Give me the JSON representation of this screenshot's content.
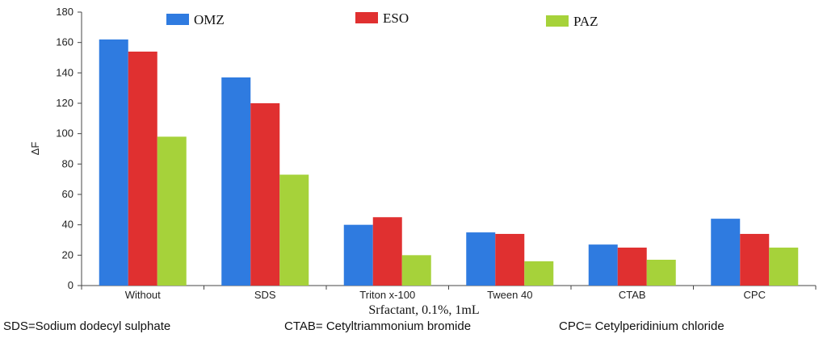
{
  "chart_data": {
    "type": "bar",
    "categories": [
      "Without",
      "SDS",
      "Triton x-100",
      "Tween 40",
      "CTAB",
      "CPC"
    ],
    "series": [
      {
        "name": "OMZ",
        "color": "#2f7be0",
        "values": [
          162,
          137,
          40,
          35,
          27,
          44
        ]
      },
      {
        "name": "ESO",
        "color": "#e03030",
        "values": [
          154,
          120,
          45,
          34,
          25,
          34
        ]
      },
      {
        "name": "PAZ",
        "color": "#a6d23a",
        "values": [
          98,
          73,
          20,
          16,
          17,
          25
        ]
      }
    ],
    "xlabel": "Srfactant,  0.1%, 1mL",
    "ylabel": "ΔF",
    "ylim": [
      0,
      180
    ],
    "yticks": [
      0,
      20,
      40,
      60,
      80,
      100,
      120,
      140,
      160,
      180
    ],
    "grid": false,
    "legend": "top"
  },
  "footnotes": {
    "sds": "SDS=Sodium dodecyl sulphate",
    "ctab": "CTAB= Cetyltriammonium bromide",
    "cpc": "CPC= Cetylperidinium chloride"
  }
}
